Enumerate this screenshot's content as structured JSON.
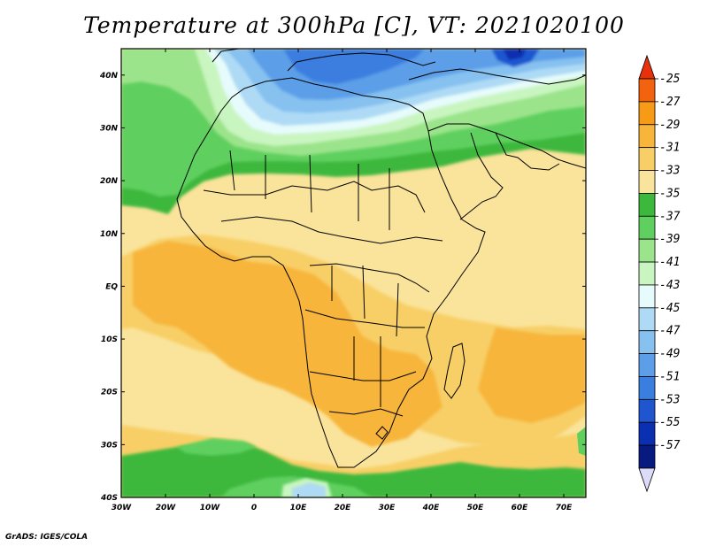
{
  "title": "Temperature at 300hPa [C], VT: 2021020100",
  "credit": "GrADS: IGES/COLA",
  "map": {
    "projection": "lat-lon",
    "lon_range": [
      -30,
      75
    ],
    "lat_range": [
      -40,
      45
    ],
    "lon_ticks": [
      "30W",
      "20W",
      "10W",
      "0",
      "10E",
      "20E",
      "30E",
      "40E",
      "50E",
      "60E",
      "70E"
    ],
    "lat_ticks": [
      "40N",
      "30N",
      "20N",
      "10N",
      "EQ",
      "10S",
      "20S",
      "30S",
      "40S"
    ]
  },
  "colorbar": {
    "levels": [
      "-25",
      "-27",
      "-29",
      "-31",
      "-33",
      "-35",
      "-37",
      "-39",
      "-41",
      "-43",
      "-45",
      "-47",
      "-49",
      "-51",
      "-53",
      "-55",
      "-57"
    ],
    "colors": [
      "#e8300a",
      "#f2620f",
      "#f79a16",
      "#f7b53b",
      "#f8cf66",
      "#fae39a",
      "#3cb83c",
      "#5fd05f",
      "#9be48b",
      "#c9f5c0",
      "#e6fbfb",
      "#aedaf5",
      "#86c1f0",
      "#5c9fe8",
      "#3a7ee0",
      "#1f56d0",
      "#0a2fb0",
      "#061a80",
      "#dcdcf8"
    ]
  }
}
